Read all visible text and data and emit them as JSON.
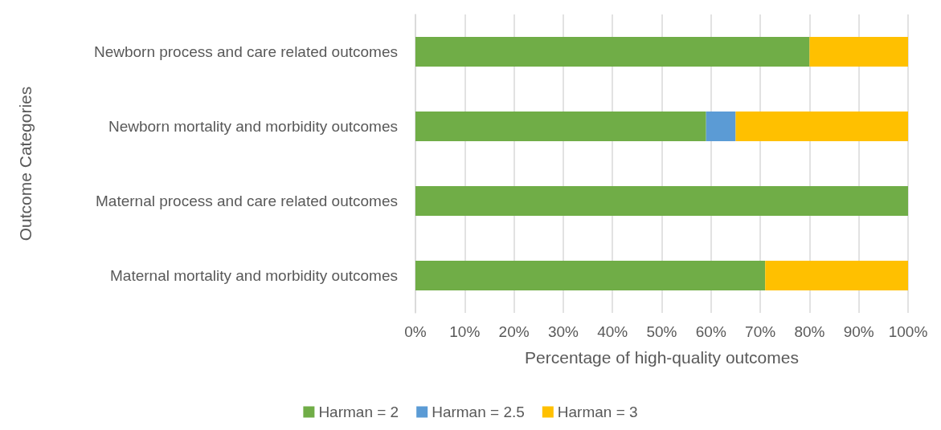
{
  "chart_data": {
    "type": "bar",
    "orientation": "horizontal",
    "stacked": true,
    "xlabel": "Percentage of high-quality outcomes",
    "ylabel": "Outcome Categories",
    "categories": [
      "Newborn process and care related outcomes",
      "Newborn mortality and morbidity outcomes",
      "Maternal process and care related outcomes",
      "Maternal mortality and morbidity outcomes"
    ],
    "series": [
      {
        "name": "Harman = 2",
        "color": "#70ad47",
        "values": [
          80,
          59,
          100,
          71
        ]
      },
      {
        "name": "Harman = 2.5",
        "color": "#5b9bd5",
        "values": [
          0,
          6,
          0,
          0
        ]
      },
      {
        "name": "Harman = 3",
        "color": "#ffc000",
        "values": [
          20,
          35,
          0,
          29
        ]
      }
    ],
    "xlim": [
      0,
      100
    ],
    "xticks": [
      {
        "value": 0,
        "label": "0%"
      },
      {
        "value": 10,
        "label": "10%"
      },
      {
        "value": 20,
        "label": "20%"
      },
      {
        "value": 30,
        "label": "30%"
      },
      {
        "value": 40,
        "label": "40%"
      },
      {
        "value": 50,
        "label": "50%"
      },
      {
        "value": 60,
        "label": "60%"
      },
      {
        "value": 70,
        "label": "70%"
      },
      {
        "value": 80,
        "label": "80%"
      },
      {
        "value": 90,
        "label": "90%"
      },
      {
        "value": 100,
        "label": "100%"
      }
    ],
    "grid": "x",
    "legend": "bottom"
  }
}
